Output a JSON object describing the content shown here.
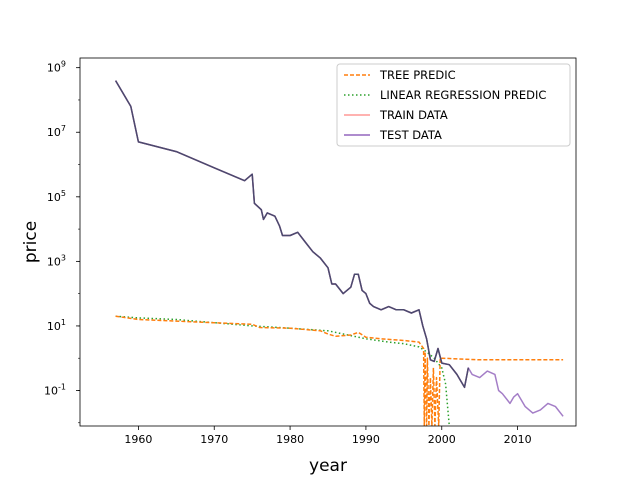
{
  "chart_data": {
    "type": "line",
    "title": "",
    "xlabel": "year",
    "ylabel": "price",
    "xlim": [
      1952.3,
      2017.7
    ],
    "ylim_log10": [
      -2.1,
      9.3
    ],
    "yscale": "log",
    "x_ticks": [
      1960,
      1970,
      1980,
      1990,
      2000,
      2010
    ],
    "y_ticks": [
      {
        "value_log10": 9,
        "label": "10^9"
      },
      {
        "value_log10": 7,
        "label": "10^7"
      },
      {
        "value_log10": 5,
        "label": "10^5"
      },
      {
        "value_log10": 3,
        "label": "10^3"
      },
      {
        "value_log10": 1,
        "label": "10^1"
      },
      {
        "value_log10": -1,
        "label": "10^-1"
      }
    ],
    "legend_position": "top-right",
    "series": [
      {
        "name": "TREE PREDIC",
        "color": "#ff7f0e",
        "style": "dashed",
        "points": [
          [
            1957,
            1.3
          ],
          [
            1960,
            1.2
          ],
          [
            1965,
            1.15
          ],
          [
            1970,
            1.1
          ],
          [
            1975,
            1.05
          ],
          [
            1976,
            0.95
          ],
          [
            1980,
            0.93
          ],
          [
            1984,
            0.85
          ],
          [
            1985,
            0.75
          ],
          [
            1986,
            0.68
          ],
          [
            1988,
            0.72
          ],
          [
            1989,
            0.8
          ],
          [
            1990,
            0.65
          ],
          [
            1992,
            0.6
          ],
          [
            1995,
            0.55
          ],
          [
            1997,
            0.5
          ],
          [
            1997.6,
            0.3
          ],
          [
            1997.7,
            -2.1
          ],
          [
            1997.8,
            0.2
          ],
          [
            1998,
            -2.1
          ],
          [
            1998.1,
            0.0
          ],
          [
            1998.3,
            -2.1
          ],
          [
            1998.5,
            -0.6
          ],
          [
            1998.7,
            -2.1
          ],
          [
            1998.9,
            -0.3
          ],
          [
            1999.1,
            -2.1
          ],
          [
            1999.3,
            -0.6
          ],
          [
            1999.6,
            -2.1
          ],
          [
            1999.8,
            0.0
          ],
          [
            2000,
            0.0
          ],
          [
            2005,
            -0.05
          ],
          [
            2010,
            -0.05
          ],
          [
            2016,
            -0.05
          ]
        ]
      },
      {
        "name": "LINEAR REGRESSION PREDIC",
        "color": "#2ca02c",
        "style": "dotted",
        "points": [
          [
            1957,
            1.3
          ],
          [
            1960,
            1.25
          ],
          [
            1965,
            1.2
          ],
          [
            1970,
            1.1
          ],
          [
            1975,
            1.0
          ],
          [
            1980,
            0.93
          ],
          [
            1985,
            0.85
          ],
          [
            1988,
            0.7
          ],
          [
            1990,
            0.6
          ],
          [
            1993,
            0.5
          ],
          [
            1995,
            0.45
          ],
          [
            1997,
            0.35
          ],
          [
            1998,
            0.2
          ],
          [
            1999,
            0.0
          ],
          [
            2000,
            -0.3
          ],
          [
            2000.5,
            -0.8
          ],
          [
            2001,
            -2.1
          ]
        ]
      },
      {
        "name": "TRAIN DATA",
        "color": "#ff9896",
        "style": "solid",
        "points": [
          [
            1957,
            8.6
          ],
          [
            1959,
            7.8
          ],
          [
            1960,
            6.7
          ],
          [
            1965,
            6.4
          ],
          [
            1970,
            5.9
          ],
          [
            1974,
            5.5
          ],
          [
            1975,
            5.7
          ],
          [
            1975.3,
            4.8
          ],
          [
            1976.2,
            4.6
          ],
          [
            1976.5,
            4.3
          ],
          [
            1977,
            4.5
          ],
          [
            1978,
            4.4
          ],
          [
            1978.6,
            4.1
          ],
          [
            1979,
            3.8
          ],
          [
            1980,
            3.8
          ],
          [
            1981,
            3.9
          ],
          [
            1982,
            3.6
          ],
          [
            1983,
            3.3
          ],
          [
            1984,
            3.1
          ],
          [
            1985,
            2.8
          ],
          [
            1985.5,
            2.3
          ],
          [
            1986,
            2.3
          ],
          [
            1987,
            2.0
          ],
          [
            1988,
            2.2
          ],
          [
            1988.5,
            2.6
          ],
          [
            1989,
            2.6
          ],
          [
            1989.5,
            2.1
          ],
          [
            1990,
            2.0
          ],
          [
            1990.5,
            1.7
          ],
          [
            1991,
            1.6
          ],
          [
            1992,
            1.5
          ],
          [
            1993,
            1.6
          ],
          [
            1994,
            1.5
          ],
          [
            1995,
            1.5
          ],
          [
            1996,
            1.4
          ],
          [
            1997,
            1.5
          ],
          [
            1997.5,
            1.0
          ],
          [
            1998,
            0.6
          ],
          [
            1998.5,
            -0.05
          ],
          [
            1999,
            -0.1
          ],
          [
            1999.5,
            0.3
          ],
          [
            2000,
            -0.15
          ],
          [
            2001,
            -0.2
          ],
          [
            2002,
            -0.5
          ],
          [
            2003,
            -0.9
          ],
          [
            2003.5,
            -0.3
          ]
        ]
      },
      {
        "name": "TEST DATA",
        "color": "#9467bd",
        "style": "solid",
        "points": [
          [
            1957,
            8.6
          ],
          [
            1959,
            7.8
          ],
          [
            1960,
            6.7
          ],
          [
            1965,
            6.4
          ],
          [
            1970,
            5.9
          ],
          [
            1974,
            5.5
          ],
          [
            1975,
            5.7
          ],
          [
            1975.3,
            4.8
          ],
          [
            1976.2,
            4.6
          ],
          [
            1976.5,
            4.3
          ],
          [
            1977,
            4.5
          ],
          [
            1978,
            4.4
          ],
          [
            1978.6,
            4.1
          ],
          [
            1979,
            3.8
          ],
          [
            1980,
            3.8
          ],
          [
            1981,
            3.9
          ],
          [
            1982,
            3.6
          ],
          [
            1983,
            3.3
          ],
          [
            1984,
            3.1
          ],
          [
            1985,
            2.8
          ],
          [
            1985.5,
            2.3
          ],
          [
            1986,
            2.3
          ],
          [
            1987,
            2.0
          ],
          [
            1988,
            2.2
          ],
          [
            1988.5,
            2.6
          ],
          [
            1989,
            2.6
          ],
          [
            1989.5,
            2.1
          ],
          [
            1990,
            2.0
          ],
          [
            1990.5,
            1.7
          ],
          [
            1991,
            1.6
          ],
          [
            1992,
            1.5
          ],
          [
            1993,
            1.6
          ],
          [
            1994,
            1.5
          ],
          [
            1995,
            1.5
          ],
          [
            1996,
            1.4
          ],
          [
            1997,
            1.5
          ],
          [
            1997.5,
            1.0
          ],
          [
            1998,
            0.6
          ],
          [
            1998.5,
            -0.05
          ],
          [
            1999,
            -0.1
          ],
          [
            1999.5,
            0.3
          ],
          [
            2000,
            -0.15
          ],
          [
            2001,
            -0.2
          ],
          [
            2002,
            -0.5
          ],
          [
            2003,
            -0.9
          ],
          [
            2003.5,
            -0.3
          ],
          [
            2004,
            -0.5
          ],
          [
            2005,
            -0.6
          ],
          [
            2006,
            -0.4
          ],
          [
            2007,
            -0.5
          ],
          [
            2007.5,
            -1.0
          ],
          [
            2008,
            -1.1
          ],
          [
            2009,
            -1.4
          ],
          [
            2009.5,
            -1.2
          ],
          [
            2010,
            -1.1
          ],
          [
            2011,
            -1.5
          ],
          [
            2012,
            -1.7
          ],
          [
            2013,
            -1.6
          ],
          [
            2014,
            -1.4
          ],
          [
            2015,
            -1.5
          ],
          [
            2016,
            -1.8
          ]
        ]
      }
    ]
  }
}
